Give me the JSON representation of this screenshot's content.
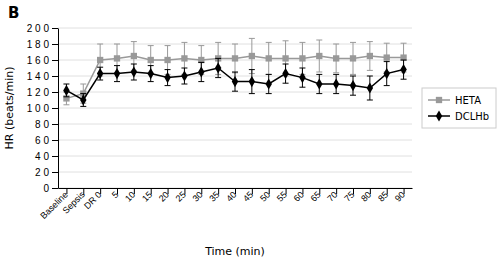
{
  "chart_data": {
    "type": "line",
    "title": "B",
    "xlabel": "Time  (min)",
    "ylabel": "HR (beats/min)",
    "categories": [
      "Baseline",
      "Sepsis",
      "DR 0",
      "5",
      "10",
      "15",
      "20",
      "25",
      "30",
      "35",
      "40",
      "45",
      "50",
      "55",
      "60",
      "65",
      "70",
      "75",
      "80",
      "85",
      "90"
    ],
    "series": [
      {
        "name": "HETA",
        "color": "#999999",
        "marker": "square",
        "values": [
          112,
          118,
          160,
          162,
          165,
          160,
          160,
          162,
          160,
          162,
          162,
          165,
          162,
          162,
          162,
          165,
          162,
          162,
          165,
          163,
          163
        ],
        "errors": [
          8,
          12,
          20,
          18,
          18,
          18,
          18,
          20,
          18,
          20,
          18,
          22,
          20,
          22,
          20,
          20,
          18,
          20,
          18,
          18,
          18
        ]
      },
      {
        "name": "DCLHb",
        "color": "#000000",
        "marker": "diamond",
        "values": [
          122,
          110,
          143,
          143,
          145,
          143,
          138,
          140,
          145,
          150,
          133,
          133,
          130,
          143,
          138,
          130,
          130,
          128,
          125,
          143,
          148
        ],
        "errors": [
          8,
          8,
          8,
          10,
          10,
          10,
          10,
          10,
          12,
          12,
          12,
          15,
          12,
          12,
          12,
          12,
          12,
          12,
          15,
          15,
          12
        ]
      }
    ],
    "ylim": [
      0,
      200
    ],
    "yticks": [
      0,
      {
        "value": 20,
        "label": "2 0"
      },
      {
        "value": 40,
        "label": "4 0"
      },
      {
        "value": 60,
        "label": "6 0"
      },
      {
        "value": 80,
        "label": "8 0"
      },
      {
        "value": 100,
        "label": "1 0 0"
      },
      {
        "value": 120,
        "label": "1 2 0"
      },
      {
        "value": 140,
        "label": "1 4 0"
      },
      {
        "value": 160,
        "label": "1 6 0"
      },
      {
        "value": 180,
        "label": "1 8 0"
      },
      {
        "value": 200,
        "label": "2 0 0"
      }
    ],
    "grid": true,
    "legend": "right"
  }
}
